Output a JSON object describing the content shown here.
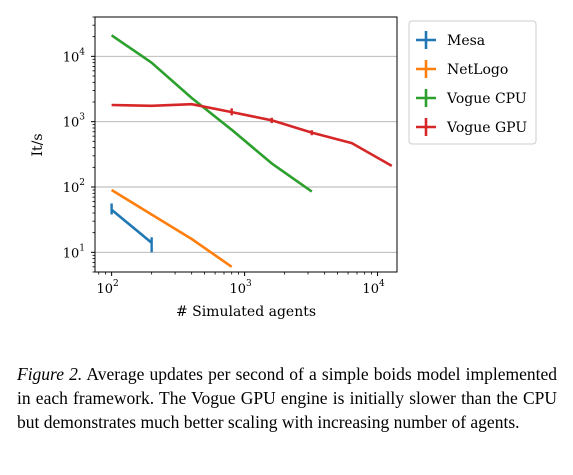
{
  "chart_data": {
    "type": "line",
    "xlabel": "# Simulated agents",
    "ylabel": "It/s",
    "xscale": "log",
    "yscale": "log",
    "xlim": [
      75,
      14000
    ],
    "ylim": [
      5,
      40000
    ],
    "x_ticks": [
      {
        "value": 100,
        "base": "10",
        "exp": "2"
      },
      {
        "value": 1000,
        "base": "10",
        "exp": "3"
      },
      {
        "value": 10000,
        "base": "10",
        "exp": "4"
      }
    ],
    "y_ticks": [
      {
        "value": 10,
        "base": "10",
        "exp": "1"
      },
      {
        "value": 100,
        "base": "10",
        "exp": "2"
      },
      {
        "value": 1000,
        "base": "10",
        "exp": "3"
      },
      {
        "value": 10000,
        "base": "10",
        "exp": "4"
      }
    ],
    "grid": "horizontal",
    "legend_position": "outside-right",
    "series": [
      {
        "name": "Mesa",
        "color": "#1f77b4",
        "points": [
          {
            "x": 100,
            "y": 45,
            "err_low": 38,
            "err_high": 56
          },
          {
            "x": 200,
            "y": 14,
            "err_low": 10,
            "err_high": 17
          }
        ]
      },
      {
        "name": "NetLogo",
        "color": "#ff7f0e",
        "points": [
          {
            "x": 100,
            "y": 90
          },
          {
            "x": 200,
            "y": 38
          },
          {
            "x": 400,
            "y": 16
          },
          {
            "x": 800,
            "y": 6
          }
        ]
      },
      {
        "name": "Vogue CPU",
        "color": "#2ca02c",
        "points": [
          {
            "x": 100,
            "y": 21000
          },
          {
            "x": 200,
            "y": 8000
          },
          {
            "x": 400,
            "y": 2300
          },
          {
            "x": 800,
            "y": 750
          },
          {
            "x": 1600,
            "y": 230
          },
          {
            "x": 3200,
            "y": 85
          }
        ]
      },
      {
        "name": "Vogue GPU",
        "color": "#d62728",
        "points": [
          {
            "x": 100,
            "y": 1800
          },
          {
            "x": 200,
            "y": 1750
          },
          {
            "x": 400,
            "y": 1850
          },
          {
            "x": 800,
            "y": 1400,
            "err_low": 1250,
            "err_high": 1600
          },
          {
            "x": 1600,
            "y": 1050,
            "err_low": 950,
            "err_high": 1150
          },
          {
            "x": 3200,
            "y": 680,
            "err_low": 620,
            "err_high": 740
          },
          {
            "x": 6400,
            "y": 470
          },
          {
            "x": 12800,
            "y": 210
          }
        ]
      }
    ]
  },
  "caption": {
    "label": "Figure 2.",
    "text": "Average updates per second of a simple boids model implemented in each framework. The Vogue GPU engine is initially slower than the CPU but demonstrates much better scaling with increasing number of agents."
  }
}
